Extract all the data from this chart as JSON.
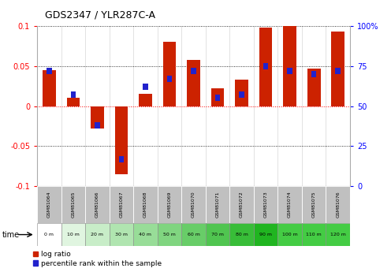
{
  "title": "GDS2347 / YLR287C-A",
  "samples": [
    "GSM81064",
    "GSM81065",
    "GSM81066",
    "GSM81067",
    "GSM81068",
    "GSM81069",
    "GSM81070",
    "GSM81071",
    "GSM81072",
    "GSM81073",
    "GSM81074",
    "GSM81075",
    "GSM81076"
  ],
  "time_labels": [
    "0 m",
    "10 m",
    "20 m",
    "30 m",
    "40 m",
    "50 m",
    "60 m",
    "70 m",
    "80 m",
    "90 m",
    "100 m",
    "110 m",
    "120 m"
  ],
  "log_ratio": [
    0.045,
    0.01,
    -0.028,
    -0.085,
    0.015,
    0.08,
    0.058,
    0.022,
    0.033,
    0.098,
    0.1,
    0.047,
    0.093
  ],
  "percentile": [
    72,
    57,
    38,
    17,
    62,
    67,
    72,
    55,
    57,
    75,
    72,
    70,
    72
  ],
  "ylim_left": [
    -0.1,
    0.1
  ],
  "ylim_right": [
    0,
    100
  ],
  "yticks_left": [
    -0.1,
    -0.05,
    0.0,
    0.05,
    0.1
  ],
  "ytick_labels_left": [
    "-0.1",
    "-0.05",
    "0",
    "0.05",
    "0.1"
  ],
  "yticks_right": [
    0,
    25,
    50,
    75,
    100
  ],
  "ytick_labels_right": [
    "0",
    "25",
    "50",
    "75",
    "100%"
  ],
  "bar_color_red": "#cc2200",
  "bar_color_blue": "#2222cc",
  "bg_color": "#ffffff",
  "legend_red": "log ratio",
  "legend_blue": "percentile rank within the sample",
  "sample_row_color": "#c0c0c0",
  "time_row_colors": [
    "#ffffff",
    "#e0f5e0",
    "#c8edc8",
    "#b0e5b0",
    "#98dd98",
    "#80d580",
    "#68cd68",
    "#50c550",
    "#38bd38",
    "#20b520",
    "#44cc44",
    "#44cc44",
    "#44cc44"
  ]
}
